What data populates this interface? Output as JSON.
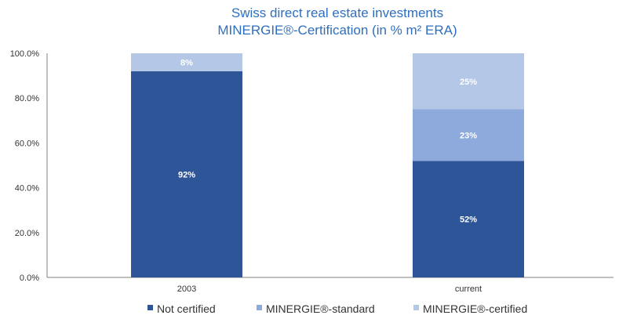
{
  "chart_data": {
    "type": "bar",
    "stacked": true,
    "title": "Swiss direct real estate investments",
    "subtitle": "MINERGIE®-Certification (in % m² ERA)",
    "xlabel": "",
    "ylabel": "",
    "categories": [
      "2003",
      "current"
    ],
    "series": [
      {
        "name": "Not certified",
        "values": [
          92,
          52
        ],
        "labels": [
          "92%",
          "52%"
        ],
        "color": "#2e5597"
      },
      {
        "name": "MINERGIE®-standard",
        "values": [
          0,
          23
        ],
        "labels": [
          "",
          "23%"
        ],
        "color": "#8eaadc"
      },
      {
        "name": "MINERGIE®-certified",
        "values": [
          8,
          25
        ],
        "labels": [
          "8%",
          "25%"
        ],
        "color": "#b4c7e7"
      }
    ],
    "ylim": [
      0,
      100
    ],
    "yticks": [
      "0.0%",
      "20.0%",
      "40.0%",
      "60.0%",
      "80.0%",
      "100.0%"
    ],
    "ytick_values": [
      0,
      20,
      40,
      60,
      80,
      100
    ],
    "grid": false,
    "legend_position": "bottom"
  }
}
